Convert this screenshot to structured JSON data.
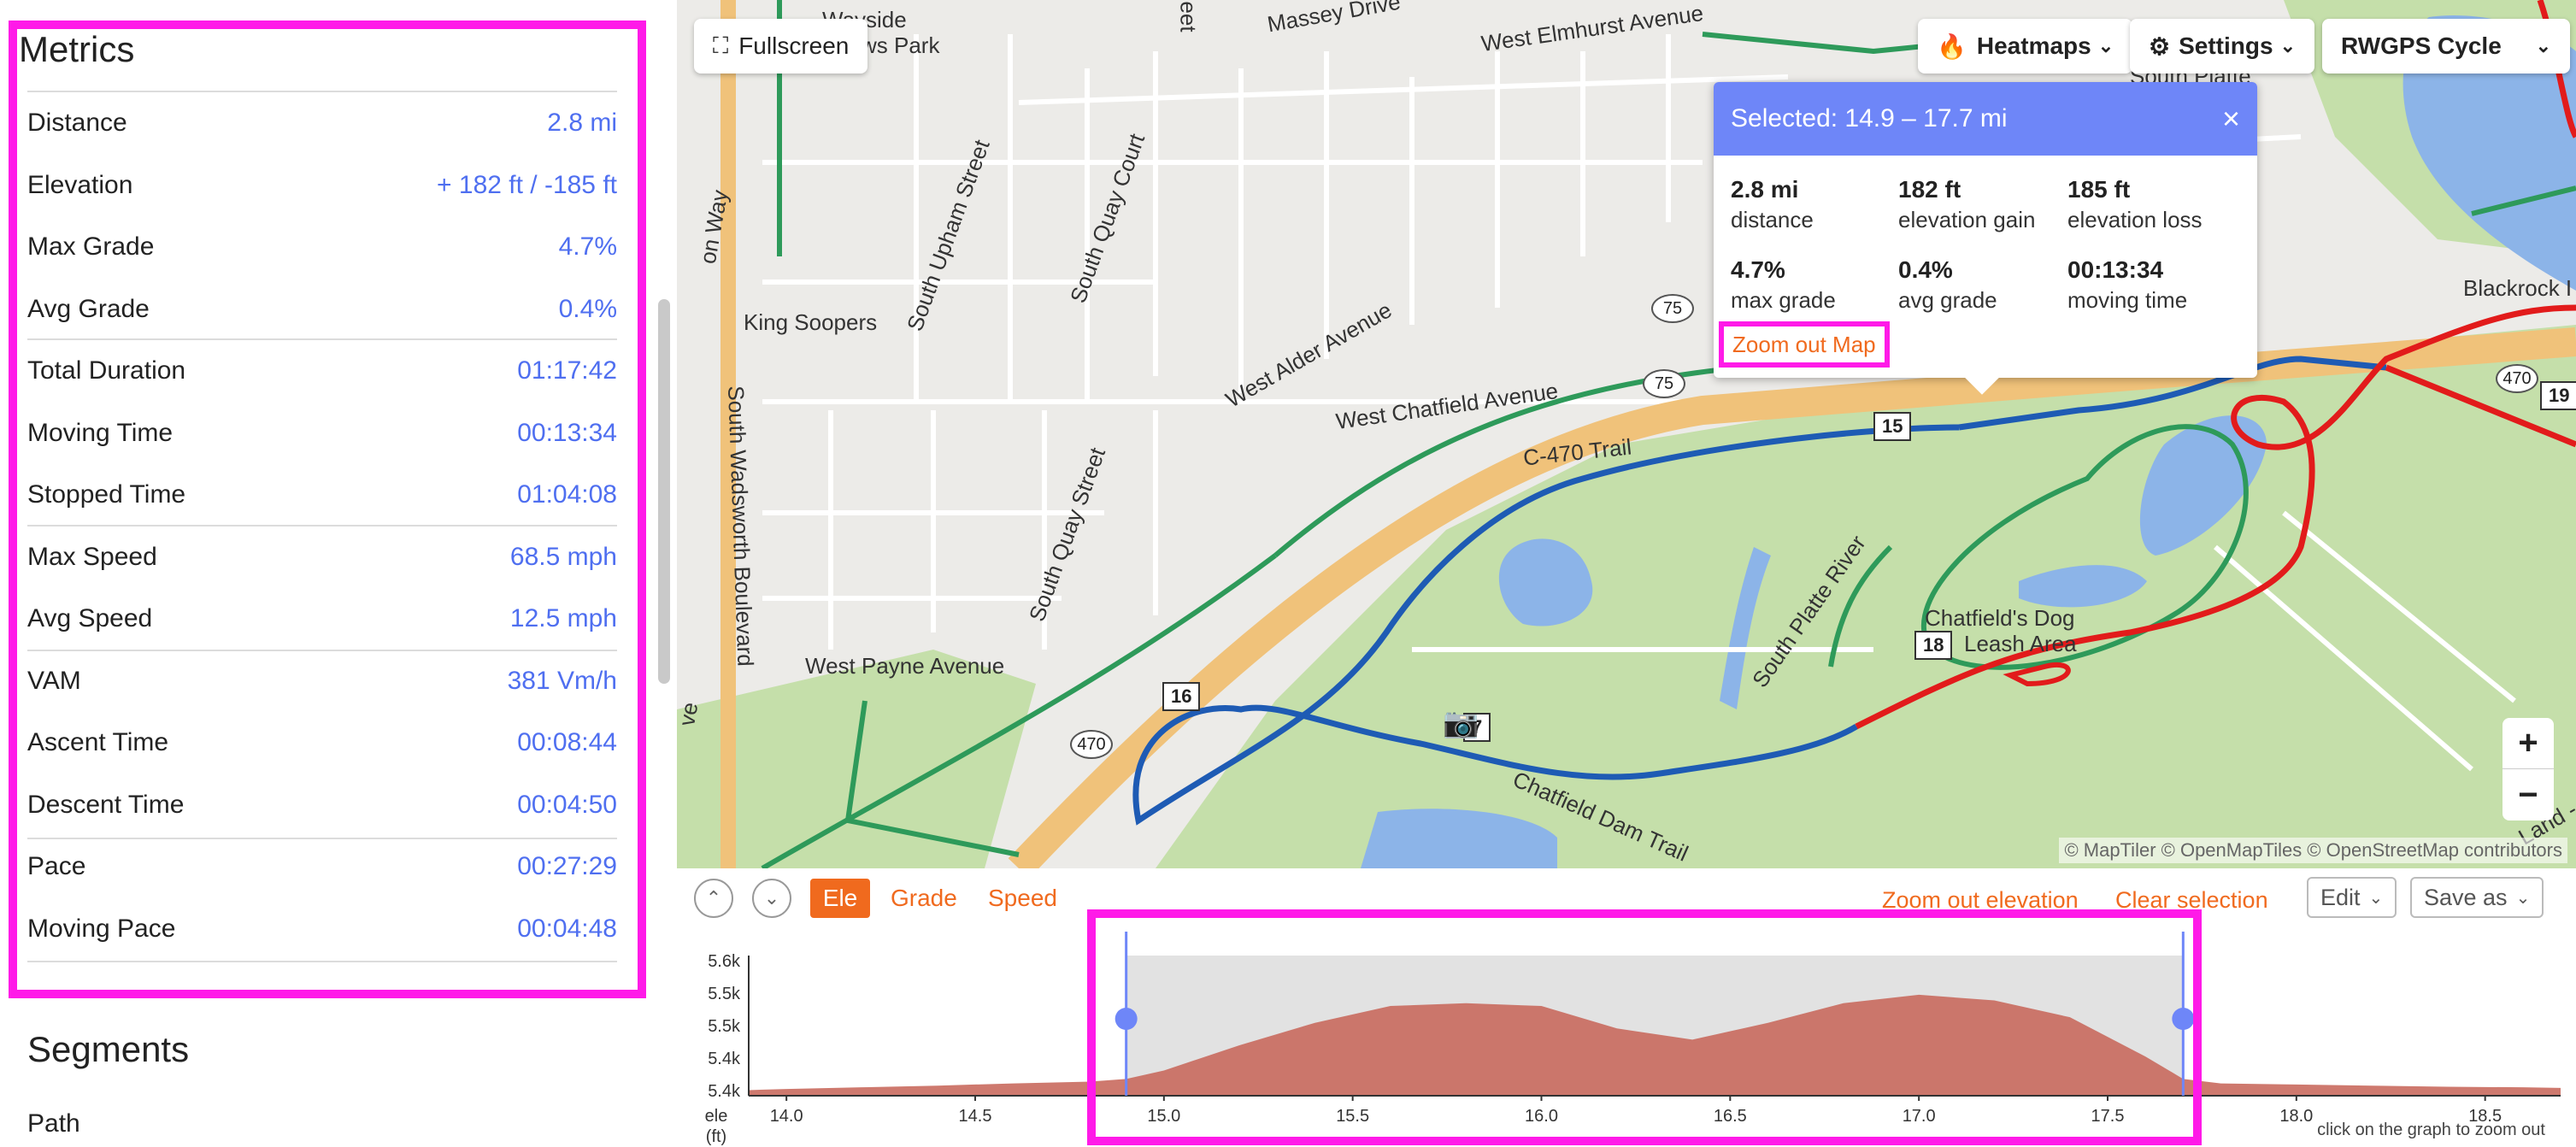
{
  "metrics": {
    "title": "Metrics",
    "rows": [
      {
        "label": "Distance",
        "value": "2.8 mi"
      },
      {
        "label": "Elevation",
        "value": "+ 182 ft / -185 ft"
      },
      {
        "label": "Max Grade",
        "value": "4.7%"
      },
      {
        "label": "Avg Grade",
        "value": "0.4%"
      },
      {
        "label": "Total Duration",
        "value": "01:17:42"
      },
      {
        "label": "Moving Time",
        "value": "00:13:34"
      },
      {
        "label": "Stopped Time",
        "value": "01:04:08"
      },
      {
        "label": "Max Speed",
        "value": "68.5 mph"
      },
      {
        "label": "Avg Speed",
        "value": "12.5 mph"
      },
      {
        "label": "VAM",
        "value": "381 Vm/h"
      },
      {
        "label": "Ascent Time",
        "value": "00:08:44"
      },
      {
        "label": "Descent Time",
        "value": "00:04:50"
      },
      {
        "label": "Pace",
        "value": "00:27:29"
      },
      {
        "label": "Moving Pace",
        "value": "00:04:48"
      }
    ]
  },
  "segments": {
    "title": "Segments",
    "first_item": "Path"
  },
  "map": {
    "fullscreen_label": "Fullscreen",
    "heatmaps_label": "Heatmaps",
    "settings_label": "Settings",
    "map_style": "RWGPS Cycle",
    "attribution": "© MapTiler © OpenMapTiles © OpenStreetMap contributors",
    "labels": {
      "wayside_park": "Wayside",
      "park": "ws Park",
      "massey": "Massey Drive",
      "elmhurst": "West Elmhurst Avenue",
      "south_platte": "South Platte",
      "blackrock": "Blackrock I",
      "king_soopers": "King Soopers",
      "upham": "South Upham Street",
      "quay_court": "South Quay Court",
      "quay_street": "South Quay Street",
      "alder": "West Alder Avenue",
      "chatfield_ave": "West Chatfield Avenue",
      "c470_trail": "C-470 Trail",
      "wadsworth": "South Wadsworth Boulevard",
      "payne": "West Payne Avenue",
      "river": "South Platte River",
      "dog_area_1": "Chatfield's Dog",
      "dog_area_2": "Leash Area",
      "dam_trail": "Chatfield Dam Trail",
      "on_way": "on Way",
      "ve": "ve",
      "eet": "eet",
      "land_ri": "Land - Ri"
    },
    "markers": {
      "m15": "15",
      "m16": "16",
      "m17": "7",
      "m18": "18",
      "m19": "19"
    },
    "shields": {
      "s75a": "75",
      "s75b": "75",
      "s470a": "470",
      "s470b": "470"
    },
    "zoom_in": "+",
    "zoom_out": "−"
  },
  "popup": {
    "title": "Selected: 14.9 – 17.7 mi",
    "close": "×",
    "stats": [
      {
        "value": "2.8 mi",
        "label": "distance"
      },
      {
        "value": "182 ft",
        "label": "elevation gain"
      },
      {
        "value": "185 ft",
        "label": "elevation loss"
      },
      {
        "value": "4.7%",
        "label": "max grade"
      },
      {
        "value": "0.4%",
        "label": "avg grade"
      },
      {
        "value": "00:13:34",
        "label": "moving time"
      }
    ],
    "zoom_out_map": "Zoom out Map"
  },
  "elevation": {
    "tabs": {
      "ele": "Ele",
      "grade": "Grade",
      "speed": "Speed"
    },
    "zoom_out_elevation": "Zoom out elevation",
    "clear_selection": "Clear selection",
    "edit": "Edit",
    "save_as": "Save as",
    "y_axis_label_1": "ele",
    "y_axis_label_2": "(ft)",
    "hint": "click on the graph to zoom out",
    "selection": {
      "start_mi": 14.9,
      "end_mi": 17.7
    }
  },
  "chart_data": {
    "type": "area",
    "x": [
      13.9,
      14.0,
      14.2,
      14.4,
      14.6,
      14.8,
      14.9,
      15.0,
      15.2,
      15.4,
      15.6,
      15.8,
      16.0,
      16.2,
      16.4,
      16.6,
      16.8,
      17.0,
      17.2,
      17.4,
      17.6,
      17.7,
      17.8,
      18.0,
      18.2,
      18.4,
      18.6,
      18.7
    ],
    "y": [
      5360,
      5362,
      5365,
      5368,
      5372,
      5375,
      5380,
      5395,
      5440,
      5480,
      5510,
      5515,
      5510,
      5470,
      5450,
      5480,
      5515,
      5530,
      5520,
      5490,
      5420,
      5380,
      5372,
      5370,
      5368,
      5366,
      5365,
      5364
    ],
    "xlabel": "",
    "ylabel": "ele (ft)",
    "x_ticks": [
      "14.0",
      "14.5",
      "15.0",
      "15.5",
      "16.0",
      "16.5",
      "17.0",
      "17.5",
      "18.0",
      "18.5"
    ],
    "y_ticks": [
      "5.6k",
      "5.5k",
      "5.5k",
      "5.4k",
      "5.4k"
    ],
    "xlim": [
      13.9,
      18.7
    ],
    "ylim": [
      5350,
      5600
    ],
    "color": "#c96a5e"
  }
}
